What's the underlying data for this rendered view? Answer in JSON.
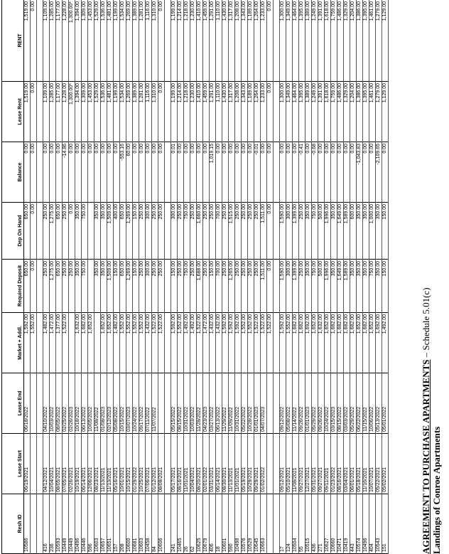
{
  "header": {
    "title": "AGREEMENT TO PURCHASE APARTMENTS",
    "schedule": "– Schedule 5.01(c)",
    "subtitle": "Landings of Conroe Apartments"
  },
  "table": {
    "headers": [
      "Resh ID",
      "Lease Start",
      "Lease End",
      "Market + Addl.",
      "Required Deposit",
      "Dep On Hand",
      "Balance",
      "Lease Rent",
      "RENT"
    ],
    "groups": [
      [
        [
          "10586",
          "06/19/2021",
          "06/18/2022",
          "1,592.00",
          "650.00",
          "650.00",
          "0.00",
          "1,519.00",
          "1,519.00"
        ],
        [
          null,
          null,
          null,
          "1,552.00",
          "0.00",
          "0.00",
          "0.00",
          "0.00",
          "0.00"
        ]
      ],
      [
        [
          "416",
          "04/12/2021",
          "04/10/2022",
          "1,482.00",
          "250.00",
          "250.00",
          "0.00",
          "1,109.00",
          "1,109.00"
        ],
        [
          "236",
          "10/04/2021",
          "10/03/2022",
          "1,472.00",
          "1,275.00",
          "1,275.00",
          "0.00",
          "1,285.00",
          "1,285.00"
        ],
        [
          "10593",
          "08/05/2021",
          "08/05/2022",
          "1,377.00",
          "650.00",
          "650.00",
          "0.00",
          "1,177.00",
          "1,177.00"
        ],
        [
          "10449",
          "07/05/2021",
          "02/25/2022",
          "1,522.00",
          "250.00",
          "250.00",
          "-14.86",
          "1,228.00",
          "1,228.00"
        ],
        [
          "10449",
          "02/26/2021",
          "02/26/2023",
          null,
          "250.00",
          "0.00",
          "0.00",
          "1,300.00*",
          "1,300.00*"
        ],
        [
          "10496",
          "10/19/2021",
          "10/18/2022",
          "1,632.00",
          "350.00",
          "350.00",
          "0.00",
          "1,394.00",
          "1,394.00"
        ],
        [
          "10446",
          "06/14/2021",
          "06/13/2022",
          "1,682.00",
          "750.00",
          "750.00",
          "0.00",
          "1,309.00",
          "1,309.00"
        ],
        [
          "596",
          "12/06/2021",
          "10/05/2022",
          "1,652.00",
          null,
          null,
          "0.00",
          "1,453.00",
          "1,453.00"
        ],
        [
          "10603",
          "08/23/2021",
          "11/08/2022",
          null,
          "350.00",
          "350.00",
          "0.00",
          "1,529.00",
          "1,529.00"
        ],
        [
          "10657",
          "11/13/2021",
          "01/08/2023",
          "1,652.00",
          "350.00",
          "350.00",
          "0.00",
          "1,536.00",
          "1,536.00"
        ],
        [
          "10651",
          "11/13/2021",
          "02/12/2023",
          "1,652.00",
          "1,509.00",
          "1,509.00",
          "0.00",
          "1,481.00",
          "1,481.00"
        ],
        [
          "157",
          "05/16/2021",
          "05/08/2022",
          "1,482.00",
          "150.00",
          "400.00",
          "0.00",
          "1,199.00",
          "1,199.00"
        ],
        [
          "208",
          "10/01/2021",
          "10/15/2022",
          "1,552.00",
          "650.00",
          "650.00",
          "-553.16",
          "1,534.00",
          "1,534.00"
        ],
        [
          "10600",
          "10/15/2021",
          "03/07/2023",
          "1,552.00",
          "1,269.00",
          "1,269.00",
          "60.00",
          "1,269.00",
          "1,269.00"
        ],
        [
          "10681",
          "01/29/2022",
          "10/24/2022",
          "1,552.00",
          "150.00",
          "150.00",
          "0.00",
          "1,389.00",
          "1,389.00"
        ],
        [
          "10603",
          "10/25/2021",
          "09/17/2022",
          "1,552.00",
          "250.00",
          "250.00",
          "0.00",
          "1,281.00",
          "1,281.00"
        ],
        [
          "10458",
          "07/06/2021",
          "07/11/2022",
          "1,432.00",
          "300.00",
          "300.00",
          "0.00",
          "1,116.00",
          "1,116.00"
        ],
        [
          "84",
          "01/12/2021",
          "11/07/2022",
          "1,522.00",
          "250.00",
          "250.00",
          "0.00",
          "1,310.00",
          "1,310.00"
        ],
        [
          "10606",
          "08/08/2021",
          null,
          "1,522.00",
          "250.00",
          "250.00",
          "0.00",
          "0.00",
          "0.00"
        ]
      ],
      [
        [
          "241",
          "05/17/2021",
          "05/15/2022",
          "1,592.00",
          "150.00",
          "300.00",
          "0.01",
          "1,199.00",
          "1,199.00"
        ],
        [
          "10465",
          "08/16/2021",
          "08/15/2022",
          "1,552.00",
          "250.00",
          "250.00",
          "0.00",
          "1,214.00",
          "1,214.00"
        ],
        [
          "26",
          "11/01/2021",
          "10/31/2022",
          "1,492.00",
          "750.00",
          "750.00",
          "0.00",
          "1,218.00",
          "1,218.00"
        ],
        [
          "62",
          "10/04/2021",
          "10/03/2022",
          "1,492.00",
          "250.00",
          "250.00",
          "0.00",
          "1,230.00",
          "1,230.00"
        ],
        [
          "10625",
          "08/20/2021",
          "11/28/2022",
          "1,522.00",
          "1,688.00",
          "1,660.00",
          "0.00",
          "1,410.00",
          "1,410.00"
        ],
        [
          "10679",
          "02/01/2022",
          "04/23/2023",
          "1,472.00",
          "250.00",
          "250.00",
          "0.00",
          "1,459.00",
          "1,459.00"
        ],
        [
          "406",
          "03/31/2021",
          "03/27/2022",
          "1,432.00",
          "150.00",
          "250.00",
          "1,019.15",
          "1,291.00",
          "1,291.00"
        ],
        [
          "18",
          "06/14/2021",
          "06/13/2022",
          "1,432.00",
          "700.00",
          "700.00",
          "0.00",
          "1,110.00",
          "1,110.00"
        ],
        [
          "10601",
          "08/30/2021",
          "11/29/2022",
          "1,592.00",
          "250.00",
          "250.00",
          "0.00",
          "1,430.00",
          "1,430.00"
        ],
        [
          "590",
          "11/13/2021",
          "11/09/2022",
          "1,592.00",
          "1,265.00",
          "1,515.00",
          "0.00",
          "1,317.00",
          "1,317.00"
        ],
        [
          "10498",
          "11/01/2021",
          "10/31/2022",
          "1,592.00",
          "250.00",
          "250.00",
          "0.00",
          "1,208.00",
          "1,208.00"
        ],
        [
          "10576",
          "05/19/2021",
          "05/22/2022",
          "1,552.00",
          "250.00",
          "250.00",
          "0.00",
          "1,343.00",
          "1,343.00"
        ],
        [
          "10529",
          "10/29/2021",
          "10/28/2022",
          "1,552.00",
          "250.00",
          "250.00",
          "0.00",
          "1,189.00",
          "1,189.00"
        ],
        [
          "10645",
          "09/29/2021",
          "01/01/2023",
          "1,522.00",
          "250.00",
          "250.00",
          "-0.01",
          "1,264.00",
          "1,264.00"
        ],
        [
          "10663",
          "01/02/2022",
          "04/07/2023",
          "1,522.00",
          "1,511.00",
          "1,511.00",
          "0.00",
          "1,233.00",
          "1,233.00"
        ],
        [
          null,
          null,
          null,
          "1,522.00",
          "0.00",
          "0.00",
          "0.00",
          "0.00",
          "0.00"
        ]
      ],
      [
        [
          "17",
          "09/12/2021",
          "09/12/2022",
          "1,592.00",
          "1,590.00",
          "1,590.00",
          "0.00",
          "1,300.00",
          "1,300.00"
        ],
        [
          "124",
          "05/10/2021",
          "05/08/2022",
          "1,552.00",
          "300.00",
          "300.00",
          "0.00",
          "1,349.00",
          "1,349.00"
        ],
        [
          "10504",
          "11/08/2021",
          "11/14/2022",
          "1,682.00",
          "1,399.00",
          "1,399.00",
          "0.00",
          "1,464.00",
          "1,464.00"
        ],
        [
          "55",
          "09/27/2021",
          "09/26/2022",
          "1,682.00",
          "250.00",
          "250.00",
          "-0.41",
          "1,395.00",
          "1,395.00"
        ],
        [
          "10515",
          "12/27/2021",
          "01/01/2023",
          "1,692.00",
          "350.00",
          "350.00",
          "0.00",
          "1,389.00",
          "1,389.00"
        ],
        [
          "436",
          "05/31/2021",
          "05/29/2022",
          "1,652.00",
          "750.00",
          "750.00",
          "-0.68",
          "1,249.00",
          "1,249.00"
        ],
        [
          "271",
          "09/27/2021",
          "09/26/2022",
          "1,632.00",
          "500.00",
          "500.00",
          "0.00",
          "1,391.00",
          "1,391.00"
        ],
        [
          "10627",
          "09/11/2021",
          "10/24/2022",
          "1,652.00",
          "1,996.00",
          "1,996.00",
          "0.00",
          "1,618.00",
          "1,618.00"
        ],
        [
          "10660",
          "01/23/2022",
          "03/15/2023",
          "1,682.00",
          "350.00",
          "350.00",
          "0.00",
          "1,759.00",
          "1,759.00"
        ],
        [
          "10471",
          "08/16/2021",
          "08/15/2022",
          "1,682.00",
          "1,649.00",
          "1,649.00",
          "0.00",
          "1,486.00",
          "1,486.00"
        ],
        [
          "10419",
          "03/04/2021",
          "03/03/2022",
          "1,682.00",
          "1,589.00",
          "1,589.00",
          "0.00",
          "1,329.00",
          "1,329.00"
        ],
        [
          "443",
          "06/01/2021",
          "05/29/2022",
          "1,682.00",
          "350.00",
          "600.00",
          "0.00",
          "1,204.00",
          "1,204.00"
        ],
        [
          "10574",
          "05/18/2021",
          "06/22/2022",
          "1,652.00",
          "350.00",
          "350.00",
          "-1,043.83",
          "1,386.00",
          "1,386.00"
        ],
        [
          "10496",
          "11/16/2021",
          "11/15/2022",
          "1,682.00",
          "350.00",
          "350.00",
          "0.00",
          "1,395.00",
          "1,395.00"
        ],
        [
          "404",
          "10/07/2021",
          "10/06/2022",
          "1,652.00",
          "750.00",
          "1,000.00",
          "0.00",
          "1,461.00",
          "1,461.00"
        ],
        [
          "10543",
          "05/22/2021",
          "05/13/2022",
          "1,692.00",
          "350.00",
          "350.00",
          "-2,109.65",
          "1,279.00",
          "1,279.00"
        ],
        [
          "151",
          "05/02/2021",
          "05/01/2022",
          "1,492.00",
          "150.00",
          "150.00",
          "0.00",
          "1,129.00",
          "1,129.00"
        ]
      ]
    ]
  }
}
